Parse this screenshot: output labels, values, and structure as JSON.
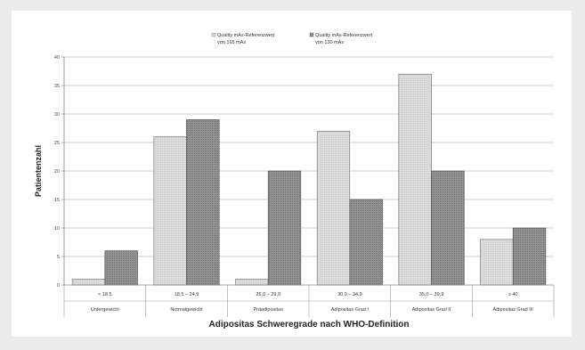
{
  "chart_data": {
    "type": "bar",
    "ylabel": "Patientenzahl",
    "xlabel": "Adipositas Schweregrade nach WHO-Definition",
    "ylim": [
      0,
      40
    ],
    "yticks": [
      0,
      5,
      10,
      15,
      20,
      25,
      30,
      35,
      40
    ],
    "grid": true,
    "legend_position": "top",
    "categories": [
      {
        "range": "< 18,5",
        "label": "Untergewicht"
      },
      {
        "range": "18,5 – 24,9",
        "label": "Normalgewicht"
      },
      {
        "range": "25,0 – 29,9",
        "label": "Präadipositas"
      },
      {
        "range": "30,0 – 34,9",
        "label": "Adipositas Grad I"
      },
      {
        "range": "35,0 – 39,9",
        "label": "Adipositas Grad II"
      },
      {
        "range": "≥ 40",
        "label": "Adipositas Grad III"
      }
    ],
    "series": [
      {
        "name_line1": "Quality mAs-Referenzwert",
        "name_line2": "von 165 mAs",
        "color": "#d9d9d9",
        "values": [
          1,
          26,
          1,
          27,
          37,
          8
        ]
      },
      {
        "name_line1": "Quality mAs-Referenzwert",
        "name_line2": "von 130 mAs",
        "color": "#8c8c8c",
        "values": [
          6,
          29,
          20,
          15,
          20,
          10
        ]
      }
    ]
  }
}
